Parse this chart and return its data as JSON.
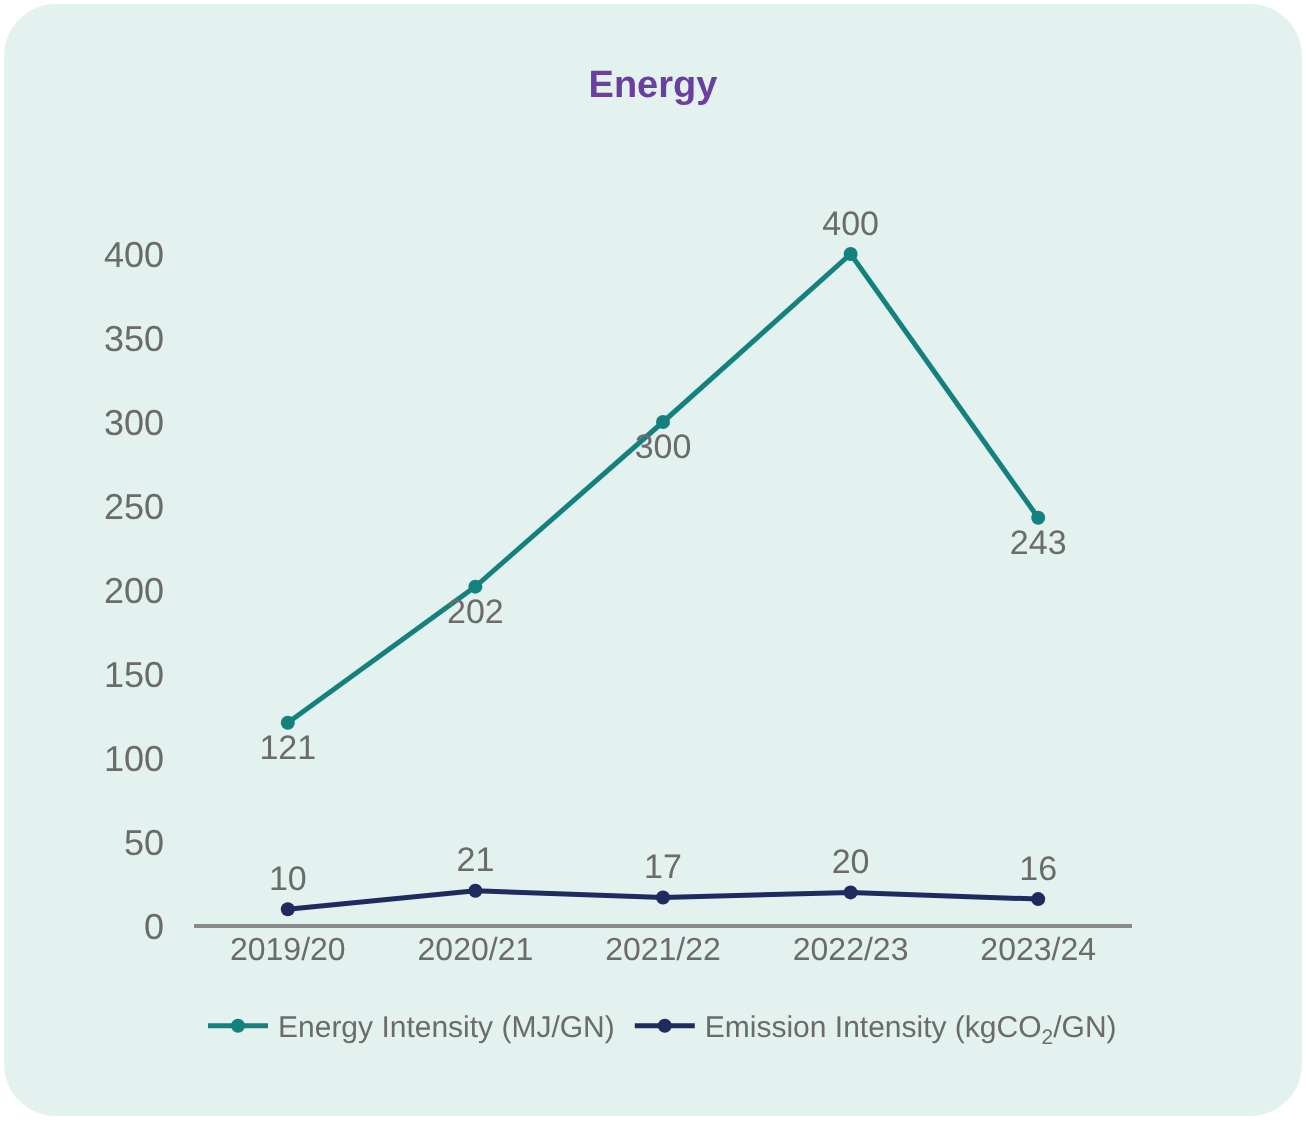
{
  "chart_data": {
    "type": "line",
    "title": "Energy",
    "categories": [
      "2019/20",
      "2020/21",
      "2021/22",
      "2022/23",
      "2023/24"
    ],
    "series": [
      {
        "name": "Energy Intensity (MJ/GN)",
        "color": "#15817e",
        "values": [
          121,
          202,
          300,
          400,
          243
        ]
      },
      {
        "name": "Emission Intensity (kgCO$_{2}$/GN)",
        "color": "#1f2a5e",
        "values": [
          10,
          21,
          17,
          20,
          16
        ]
      }
    ],
    "ylim": [
      0,
      400
    ],
    "yticks": [
      0,
      50,
      100,
      150,
      200,
      250,
      300,
      350,
      400
    ],
    "data_labels": true,
    "legend": "bottom",
    "marker": "circle"
  }
}
